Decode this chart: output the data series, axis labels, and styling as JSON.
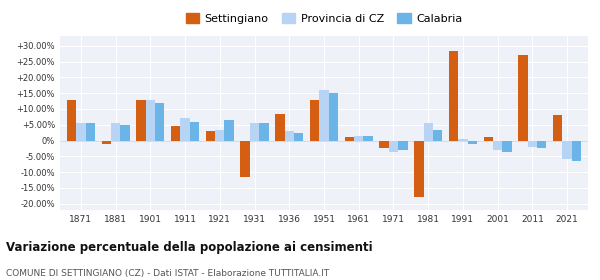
{
  "years": [
    1871,
    1881,
    1901,
    1911,
    1921,
    1931,
    1936,
    1951,
    1961,
    1971,
    1981,
    1991,
    2001,
    2011,
    2021
  ],
  "settingiano": [
    13.0,
    -1.0,
    13.0,
    4.5,
    3.0,
    -11.5,
    8.5,
    13.0,
    1.0,
    -2.5,
    -18.0,
    28.5,
    1.0,
    27.0,
    8.0
  ],
  "provincia_cz": [
    5.5,
    5.5,
    13.0,
    7.0,
    3.5,
    5.5,
    3.0,
    16.0,
    1.5,
    -3.5,
    5.5,
    0.5,
    -3.0,
    -2.0,
    -6.0
  ],
  "calabria": [
    5.5,
    5.0,
    12.0,
    6.0,
    6.5,
    5.5,
    2.5,
    15.0,
    1.5,
    -3.0,
    3.5,
    -1.0,
    -3.5,
    -2.5,
    -6.5
  ],
  "settingiano_color": "#d45f13",
  "provincia_color": "#b8d4f5",
  "calabria_color": "#6ab4e8",
  "background_color": "#eef2f8",
  "title": "Variazione percentuale della popolazione ai censimenti",
  "subtitle": "COMUNE DI SETTINGIANO (CZ) - Dati ISTAT - Elaborazione TUTTITALIA.IT",
  "legend_labels": [
    "Settingiano",
    "Provincia di CZ",
    "Calabria"
  ],
  "yticks": [
    -20,
    -15,
    -10,
    -5,
    0,
    5,
    10,
    15,
    20,
    25,
    30
  ],
  "ylim": [
    -22,
    33
  ]
}
